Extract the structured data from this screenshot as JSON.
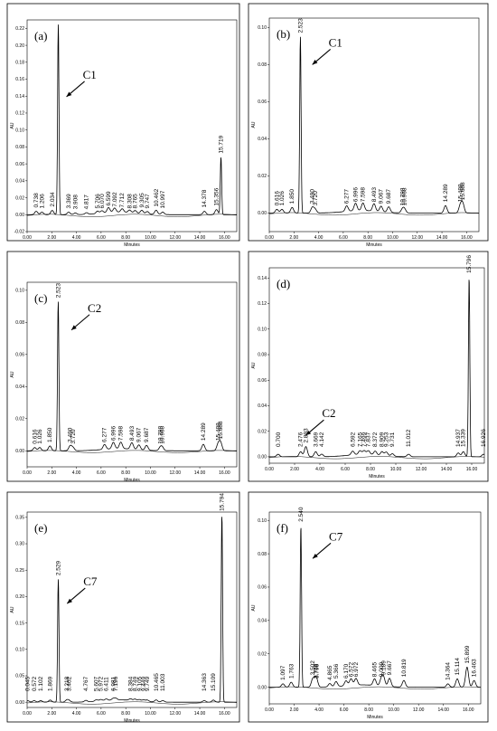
{
  "figure": {
    "chart_data": [
      {
        "type": "line",
        "panel_label": "(a)",
        "compound": "C1",
        "xlabel": "Minutes",
        "ylabel": "AU",
        "xlim": [
          0,
          17
        ],
        "ylim": [
          -0.02,
          0.23
        ],
        "x_ticks": [
          "0.00",
          "2.00",
          "4.00",
          "6.00",
          "8.00",
          "10.00",
          "12.00",
          "14.00",
          "16.00"
        ],
        "y_ticks": [
          "-0.02",
          "0.00",
          "0.02",
          "0.04",
          "0.06",
          "0.08",
          "0.10",
          "0.12",
          "0.14",
          "0.16",
          "0.18",
          "0.20",
          "0.22"
        ],
        "arrow_target": {
          "x": 2.9,
          "y": 0.135
        },
        "peaks": [
          {
            "label": "0.738",
            "rt": 0.738,
            "height": 0.004
          },
          {
            "label": "1.206",
            "rt": 1.206,
            "height": 0.003
          },
          {
            "label": "2.034",
            "rt": 2.034,
            "height": 0.005
          },
          {
            "label": "3.369",
            "rt": 3.369,
            "height": 0.003
          },
          {
            "label": "3.908",
            "rt": 3.908,
            "height": 0.002
          },
          {
            "label": "4.817",
            "rt": 4.817,
            "height": 0.002
          },
          {
            "label": "5.706",
            "rt": 5.706,
            "height": 0.003
          },
          {
            "label": "6.070",
            "rt": 6.07,
            "height": 0.003
          },
          {
            "label": "6.599",
            "rt": 6.599,
            "height": 0.006
          },
          {
            "label": "7.092",
            "rt": 7.092,
            "height": 0.005
          },
          {
            "label": "7.712",
            "rt": 7.712,
            "height": 0.004
          },
          {
            "label": "8.308",
            "rt": 8.308,
            "height": 0.003
          },
          {
            "label": "8.765",
            "rt": 8.765,
            "height": 0.003
          },
          {
            "label": "9.305",
            "rt": 9.305,
            "height": 0.004
          },
          {
            "label": "9.747",
            "rt": 9.747,
            "height": 0.003
          },
          {
            "label": "10.462",
            "rt": 10.462,
            "height": 0.005
          },
          {
            "label": "10.997",
            "rt": 10.997,
            "height": 0.003
          },
          {
            "label": "14.378",
            "rt": 14.378,
            "height": 0.004
          },
          {
            "label": "15.356",
            "rt": 15.356,
            "height": 0.006
          },
          {
            "label": "15.719",
            "rt": 15.719,
            "height": 0.068
          }
        ],
        "main_peak": {
          "rt": 2.529,
          "height": 0.225
        }
      },
      {
        "type": "line",
        "panel_label": "(b)",
        "compound": "C1",
        "xlabel": "Minutes",
        "ylabel": "AU",
        "xlim": [
          0,
          17
        ],
        "ylim": [
          -0.01,
          0.105
        ],
        "x_ticks": [
          "0.00",
          "2.00",
          "4.00",
          "6.00",
          "8.00",
          "10.00",
          "12.00",
          "14.00",
          "16.00"
        ],
        "y_ticks": [
          "0.00",
          "0.02",
          "0.04",
          "0.06",
          "0.08",
          "0.10"
        ],
        "arrow_target": {
          "x": 3.2,
          "y": 0.078
        },
        "peaks": [
          {
            "label": "0.616",
            "rt": 0.616,
            "height": 0.002
          },
          {
            "label": "1.026",
            "rt": 1.026,
            "height": 0.002
          },
          {
            "label": "1.850",
            "rt": 1.85,
            "height": 0.003
          },
          {
            "label": "2.523",
            "rt": 2.523,
            "height": 0.095
          },
          {
            "label": "3.490",
            "rt": 3.49,
            "height": 0.003
          },
          {
            "label": "3.720",
            "rt": 3.72,
            "height": 0.002
          },
          {
            "label": "6.277",
            "rt": 6.277,
            "height": 0.003
          },
          {
            "label": "6.996",
            "rt": 6.996,
            "height": 0.004
          },
          {
            "label": "7.598",
            "rt": 7.598,
            "height": 0.004
          },
          {
            "label": "8.493",
            "rt": 8.493,
            "height": 0.004
          },
          {
            "label": "9.067",
            "rt": 9.067,
            "height": 0.003
          },
          {
            "label": "9.687",
            "rt": 9.687,
            "height": 0.003
          },
          {
            "label": "10.798",
            "rt": 10.798,
            "height": 0.002
          },
          {
            "label": "10.968",
            "rt": 10.968,
            "height": 0.002
          },
          {
            "label": "14.289",
            "rt": 14.289,
            "height": 0.004
          },
          {
            "label": "15.488",
            "rt": 15.488,
            "height": 0.004
          },
          {
            "label": "15.688",
            "rt": 15.688,
            "height": 0.005
          }
        ],
        "main_peak": {
          "rt": 2.523,
          "height": 0.095
        }
      },
      {
        "type": "line",
        "panel_label": "(c)",
        "compound": "C2",
        "xlabel": "Minutes",
        "ylabel": "AU",
        "xlim": [
          0,
          17
        ],
        "ylim": [
          -0.01,
          0.105
        ],
        "x_ticks": [
          "0.00",
          "2.00",
          "4.00",
          "6.00",
          "8.00",
          "10.00",
          "12.00",
          "14.00",
          "16.00"
        ],
        "y_ticks": [
          "0.00",
          "0.02",
          "0.04",
          "0.06",
          "0.08",
          "0.10"
        ],
        "arrow_target": {
          "x": 3.3,
          "y": 0.073
        },
        "peaks": [
          {
            "label": "0.616",
            "rt": 0.616,
            "height": 0.002
          },
          {
            "label": "1.026",
            "rt": 1.026,
            "height": 0.002
          },
          {
            "label": "1.850",
            "rt": 1.85,
            "height": 0.003
          },
          {
            "label": "2.523",
            "rt": 2.523,
            "height": 0.093
          },
          {
            "label": "3.490",
            "rt": 3.49,
            "height": 0.003
          },
          {
            "label": "3.720",
            "rt": 3.72,
            "height": 0.002
          },
          {
            "label": "6.277",
            "rt": 6.277,
            "height": 0.003
          },
          {
            "label": "6.996",
            "rt": 6.996,
            "height": 0.004
          },
          {
            "label": "7.598",
            "rt": 7.598,
            "height": 0.004
          },
          {
            "label": "8.493",
            "rt": 8.493,
            "height": 0.004
          },
          {
            "label": "9.067",
            "rt": 9.067,
            "height": 0.003
          },
          {
            "label": "9.687",
            "rt": 9.687,
            "height": 0.003
          },
          {
            "label": "10.798",
            "rt": 10.798,
            "height": 0.002
          },
          {
            "label": "10.968",
            "rt": 10.968,
            "height": 0.002
          },
          {
            "label": "14.289",
            "rt": 14.289,
            "height": 0.004
          },
          {
            "label": "15.488",
            "rt": 15.488,
            "height": 0.004
          },
          {
            "label": "15.688",
            "rt": 15.688,
            "height": 0.005
          }
        ],
        "main_peak": {
          "rt": 2.523,
          "height": 0.093
        }
      },
      {
        "type": "line",
        "panel_label": "(d)",
        "compound": "C2",
        "xlabel": "Minutes",
        "ylabel": "AU",
        "xlim": [
          0,
          17
        ],
        "ylim": [
          -0.005,
          0.148
        ],
        "x_ticks": [
          "0.00",
          "2.00",
          "4.00",
          "6.00",
          "8.00",
          "10.00",
          "12.00",
          "14.00",
          "16.00"
        ],
        "y_ticks": [
          "0.00",
          "0.02",
          "0.04",
          "0.06",
          "0.08",
          "0.10",
          "0.12",
          "0.14"
        ],
        "arrow_target": {
          "x": 2.6,
          "y": 0.014
        },
        "peaks": [
          {
            "label": "0.700",
            "rt": 0.7,
            "height": 0.002
          },
          {
            "label": "2.476",
            "rt": 2.476,
            "height": 0.004
          },
          {
            "label": "2.893",
            "rt": 2.893,
            "height": 0.008
          },
          {
            "label": "3.669",
            "rt": 3.669,
            "height": 0.004
          },
          {
            "label": "4.142",
            "rt": 4.142,
            "height": 0.002
          },
          {
            "label": "6.592",
            "rt": 6.592,
            "height": 0.003
          },
          {
            "label": "7.165",
            "rt": 7.165,
            "height": 0.003
          },
          {
            "label": "7.499",
            "rt": 7.499,
            "height": 0.003
          },
          {
            "label": "7.837",
            "rt": 7.837,
            "height": 0.003
          },
          {
            "label": "8.372",
            "rt": 8.372,
            "height": 0.003
          },
          {
            "label": "8.909",
            "rt": 8.909,
            "height": 0.003
          },
          {
            "label": "9.253",
            "rt": 9.253,
            "height": 0.003
          },
          {
            "label": "9.731",
            "rt": 9.731,
            "height": 0.002
          },
          {
            "label": "11.012",
            "rt": 11.012,
            "height": 0.002
          },
          {
            "label": "14.937",
            "rt": 14.937,
            "height": 0.003
          },
          {
            "label": "15.339",
            "rt": 15.339,
            "height": 0.004
          },
          {
            "label": "15.796",
            "rt": 15.796,
            "height": 0.141
          },
          {
            "label": "16.926",
            "rt": 16.926,
            "height": 0.002
          }
        ],
        "main_peak": {
          "rt": 15.796,
          "height": 0.141
        }
      },
      {
        "type": "line",
        "panel_label": "(e)",
        "compound": "C7",
        "xlabel": "Minutes",
        "ylabel": "AU",
        "xlim": [
          0,
          17
        ],
        "ylim": [
          -0.01,
          0.36
        ],
        "x_ticks": [
          "0.00",
          "2.00",
          "4.00",
          "6.00",
          "8.00",
          "10.00",
          "12.00",
          "14.00",
          "16.00"
        ],
        "y_ticks": [
          "0.00",
          "0.05",
          "0.10",
          "0.15",
          "0.20",
          "0.25",
          "0.30",
          "0.35"
        ],
        "arrow_target": {
          "x": 2.95,
          "y": 0.18
        },
        "peaks": [
          {
            "label": "0.045",
            "rt": 0.045,
            "height": 0.003
          },
          {
            "label": "0.572",
            "rt": 0.572,
            "height": 0.003
          },
          {
            "label": "1.102",
            "rt": 1.102,
            "height": 0.003
          },
          {
            "label": "1.869",
            "rt": 1.869,
            "height": 0.004
          },
          {
            "label": "2.529",
            "rt": 2.529,
            "height": 0.233
          },
          {
            "label": "3.218",
            "rt": 3.218,
            "height": 0.004
          },
          {
            "label": "3.402",
            "rt": 3.402,
            "height": 0.003
          },
          {
            "label": "4.767",
            "rt": 4.767,
            "height": 0.003
          },
          {
            "label": "5.607",
            "rt": 5.607,
            "height": 0.003
          },
          {
            "label": "5.972",
            "rt": 5.972,
            "height": 0.003
          },
          {
            "label": "6.411",
            "rt": 6.411,
            "height": 0.003
          },
          {
            "label": "6.981",
            "rt": 6.981,
            "height": 0.003
          },
          {
            "label": "7.196",
            "rt": 7.196,
            "height": 0.003
          },
          {
            "label": "8.384",
            "rt": 8.384,
            "height": 0.003
          },
          {
            "label": "8.749",
            "rt": 8.749,
            "height": 0.003
          },
          {
            "label": "9.105",
            "rt": 9.105,
            "height": 0.003
          },
          {
            "label": "9.449",
            "rt": 9.449,
            "height": 0.003
          },
          {
            "label": "9.749",
            "rt": 9.749,
            "height": 0.003
          },
          {
            "label": "10.465",
            "rt": 10.465,
            "height": 0.004
          },
          {
            "label": "11.003",
            "rt": 11.003,
            "height": 0.003
          },
          {
            "label": "14.363",
            "rt": 14.363,
            "height": 0.003
          },
          {
            "label": "15.109",
            "rt": 15.109,
            "height": 0.004
          },
          {
            "label": "15.794",
            "rt": 15.794,
            "height": 0.355
          }
        ],
        "main_peak": {
          "rt": 15.794,
          "height": 0.355
        }
      },
      {
        "type": "line",
        "panel_label": "(f)",
        "compound": "C7",
        "xlabel": "Minutes",
        "ylabel": "AU",
        "xlim": [
          0,
          17
        ],
        "ylim": [
          -0.01,
          0.105
        ],
        "x_ticks": [
          "0.00",
          "2.00",
          "4.00",
          "6.00",
          "8.00",
          "10.00",
          "12.00",
          "14.00",
          "16.00"
        ],
        "y_ticks": [
          "0.00",
          "0.02",
          "0.04",
          "0.06",
          "0.08",
          "0.10"
        ],
        "arrow_target": {
          "x": 3.2,
          "y": 0.075
        },
        "peaks": [
          {
            "label": "1.097",
            "rt": 1.097,
            "height": 0.002
          },
          {
            "label": "1.763",
            "rt": 1.763,
            "height": 0.003
          },
          {
            "label": "2.540",
            "rt": 2.54,
            "height": 0.097
          },
          {
            "label": "3.502",
            "rt": 3.502,
            "height": 0.005
          },
          {
            "label": "3.738",
            "rt": 3.738,
            "height": 0.003
          },
          {
            "label": "3.798",
            "rt": 3.798,
            "height": 0.003
          },
          {
            "label": "4.865",
            "rt": 4.865,
            "height": 0.002
          },
          {
            "label": "5.366",
            "rt": 5.366,
            "height": 0.003
          },
          {
            "label": "6.170",
            "rt": 6.17,
            "height": 0.003
          },
          {
            "label": "6.572",
            "rt": 6.572,
            "height": 0.004
          },
          {
            "label": "6.972",
            "rt": 6.972,
            "height": 0.004
          },
          {
            "label": "8.465",
            "rt": 8.465,
            "height": 0.004
          },
          {
            "label": "9.009",
            "rt": 9.009,
            "height": 0.004
          },
          {
            "label": "9.189",
            "rt": 9.189,
            "height": 0.005
          },
          {
            "label": "9.667",
            "rt": 9.667,
            "height": 0.005
          },
          {
            "label": "10.819",
            "rt": 10.819,
            "height": 0.004
          },
          {
            "label": "14.364",
            "rt": 14.364,
            "height": 0.002
          },
          {
            "label": "15.114",
            "rt": 15.114,
            "height": 0.005
          },
          {
            "label": "15.899",
            "rt": 15.899,
            "height": 0.012
          },
          {
            "label": "16.463",
            "rt": 16.463,
            "height": 0.004
          }
        ],
        "main_peak": {
          "rt": 2.54,
          "height": 0.097
        }
      }
    ]
  }
}
